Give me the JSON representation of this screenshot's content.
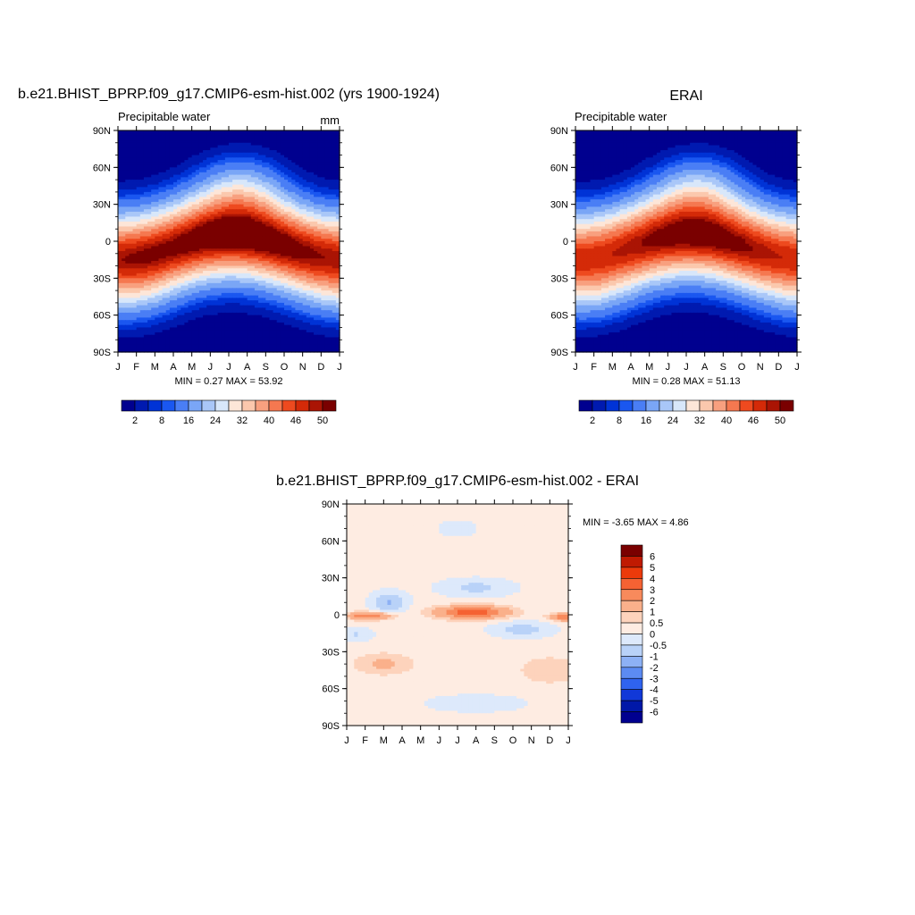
{
  "panels": {
    "model": {
      "title": "b.e21.BHIST_BPRP.f09_g17.CMIP6-esm-hist.002 (yrs 1900-1924)",
      "left_label": "Precipitable water",
      "right_label": "mm",
      "min_max": "MIN =   0.27 MAX =   53.92"
    },
    "obs": {
      "title": "ERAI",
      "left_label": "Precipitable water",
      "min_max": "MIN =   0.28 MAX =   51.13"
    },
    "diff": {
      "title": "b.e21.BHIST_BPRP.f09_g17.CMIP6-esm-hist.002 - ERAI",
      "min_max": "MIN =  -3.65 MAX =    4.86"
    }
  },
  "axes": {
    "x_ticks": [
      "J",
      "F",
      "M",
      "A",
      "M",
      "J",
      "J",
      "A",
      "S",
      "O",
      "N",
      "D",
      "J"
    ],
    "y_ticks": [
      "90N",
      "60N",
      "30N",
      "0",
      "30S",
      "60S",
      "90S"
    ]
  },
  "colorbars": {
    "pw_labels": [
      "2",
      "8",
      "16",
      "24",
      "32",
      "40",
      "46",
      "50"
    ],
    "pw_colors": [
      "#00008f",
      "#001ab0",
      "#0033d6",
      "#1a57f0",
      "#4a7ef5",
      "#7aa6f6",
      "#a9c7f8",
      "#d8e7fa",
      "#fde6d8",
      "#fbc8ad",
      "#f8a07f",
      "#f57850",
      "#ee4a1f",
      "#d42a08",
      "#aa1404",
      "#7a0000"
    ],
    "diff_labels": [
      "6",
      "5",
      "4",
      "3",
      "2",
      "1",
      "0.5",
      "0",
      "-0.5",
      "-1",
      "-2",
      "-3",
      "-4",
      "-5",
      "-6"
    ],
    "diff_colors": [
      "#7a0000",
      "#c01a02",
      "#ec3a0b",
      "#f56233",
      "#f88a5c",
      "#fab08b",
      "#fdd3bc",
      "#feece2",
      "#dde9fb",
      "#b9d2f8",
      "#8db1f5",
      "#5c8bf2",
      "#2f63ef",
      "#1138d8",
      "#0018a8",
      "#00008f"
    ]
  },
  "chart_data": [
    {
      "type": "heatmap",
      "title": "b.e21.BHIST_BPRP.f09_g17.CMIP6-esm-hist.002 (yrs 1900-1924)",
      "variable": "Precipitable water",
      "units": "mm",
      "x": [
        "J",
        "F",
        "M",
        "A",
        "M",
        "J",
        "J",
        "A",
        "S",
        "O",
        "N",
        "D",
        "J"
      ],
      "y": [
        "90S",
        "60S",
        "30S",
        "0",
        "30N",
        "60N",
        "90N"
      ],
      "min": 0.27,
      "max": 53.92,
      "contour_levels": [
        2,
        4,
        6,
        8,
        12,
        16,
        20,
        24,
        28,
        32,
        36,
        40,
        43,
        46,
        48,
        50
      ]
    },
    {
      "type": "heatmap",
      "title": "ERAI",
      "variable": "Precipitable water",
      "x": [
        "J",
        "F",
        "M",
        "A",
        "M",
        "J",
        "J",
        "A",
        "S",
        "O",
        "N",
        "D",
        "J"
      ],
      "y": [
        "90S",
        "60S",
        "30S",
        "0",
        "30N",
        "60N",
        "90N"
      ],
      "min": 0.28,
      "max": 51.13,
      "contour_levels": [
        2,
        4,
        6,
        8,
        12,
        16,
        20,
        24,
        28,
        32,
        36,
        40,
        43,
        46,
        48,
        50
      ]
    },
    {
      "type": "heatmap",
      "title": "b.e21.BHIST_BPRP.f09_g17.CMIP6-esm-hist.002 - ERAI",
      "x": [
        "J",
        "F",
        "M",
        "A",
        "M",
        "J",
        "J",
        "A",
        "S",
        "O",
        "N",
        "D",
        "J"
      ],
      "y": [
        "90S",
        "60S",
        "30S",
        "0",
        "30N",
        "60N",
        "90N"
      ],
      "min": -3.65,
      "max": 4.86,
      "contour_levels": [
        -6,
        -5,
        -4,
        -3,
        -2,
        -1,
        -0.5,
        0,
        0.5,
        1,
        2,
        3,
        4,
        5,
        6
      ]
    }
  ]
}
